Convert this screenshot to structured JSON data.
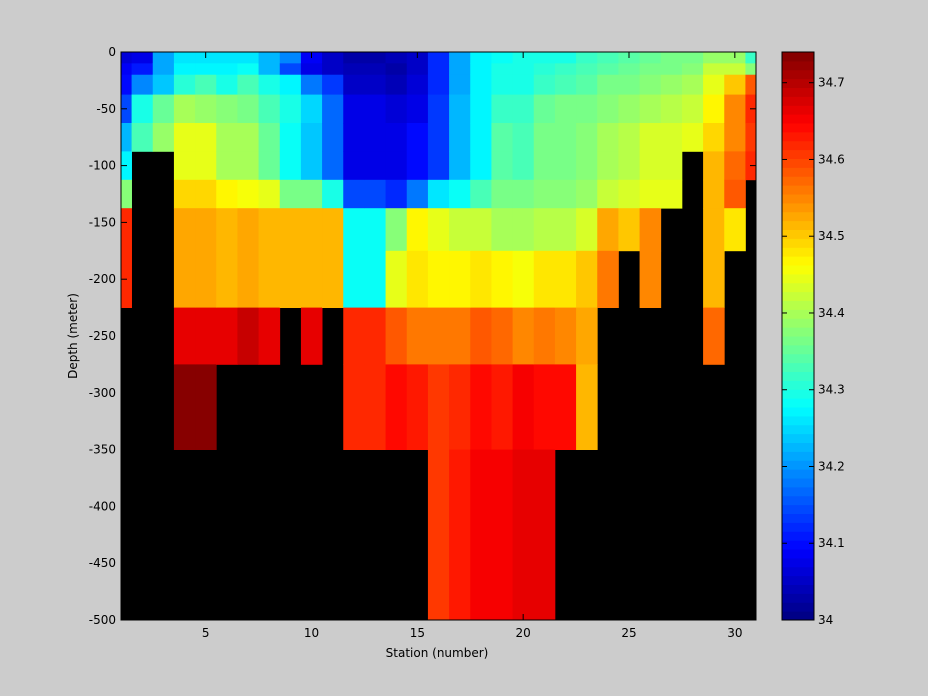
{
  "chart_data": {
    "type": "heatmap",
    "title": "",
    "xlabel": "Station (number)",
    "ylabel": "Depth (meter)",
    "xlim": [
      1,
      31
    ],
    "ylim": [
      -500,
      0
    ],
    "xticks": [
      5,
      10,
      15,
      20,
      25,
      30
    ],
    "yticks": [
      0,
      -50,
      -100,
      -150,
      -200,
      -250,
      -300,
      -350,
      -400,
      -450,
      -500
    ],
    "colorbar": {
      "clim": [
        34.0,
        34.74
      ],
      "colormap": "jet",
      "ticks": [
        34.0,
        34.1,
        34.2,
        34.3,
        34.4,
        34.5,
        34.6,
        34.7
      ],
      "tick_labels": [
        "34",
        "34.1",
        "34.2",
        "34.3",
        "34.4",
        "34.5",
        "34.6",
        "34.7"
      ]
    },
    "background_color": "#000000",
    "depth_rows": [
      -5,
      -15,
      -25,
      -50,
      -75,
      -100,
      -125,
      -150,
      -200,
      -250,
      -300,
      -400
    ],
    "stations": [
      {
        "station": 1,
        "values": [
          34.06,
          34.09,
          34.1,
          34.14,
          34.22,
          34.27,
          34.38,
          34.62,
          34.62
        ]
      },
      {
        "station": 2,
        "values": [
          34.08,
          34.11,
          34.19,
          34.29,
          34.33,
          null,
          null,
          null,
          null
        ]
      },
      {
        "station": 3,
        "values": [
          34.21,
          34.21,
          34.24,
          34.35,
          34.39,
          null,
          null,
          null,
          null
        ]
      },
      {
        "station": 4,
        "values": [
          34.26,
          34.27,
          34.31,
          34.4,
          34.44,
          34.45,
          34.49,
          34.53,
          34.53,
          34.67,
          34.74
        ]
      },
      {
        "station": 5,
        "values": [
          34.26,
          34.27,
          34.33,
          34.39,
          34.45,
          34.45,
          34.49,
          34.53,
          34.53,
          34.67,
          34.74
        ]
      },
      {
        "station": 6,
        "values": [
          34.26,
          34.27,
          34.3,
          34.38,
          34.4,
          34.4,
          34.47,
          34.52,
          34.52,
          34.67
        ]
      },
      {
        "station": 7,
        "values": [
          34.26,
          34.28,
          34.33,
          34.37,
          34.4,
          34.4,
          34.46,
          34.53,
          34.53,
          34.69
        ]
      },
      {
        "station": 8,
        "values": [
          34.23,
          34.23,
          34.3,
          34.33,
          34.35,
          34.35,
          34.44,
          34.52,
          34.52,
          34.67
        ]
      },
      {
        "station": 9,
        "values": [
          34.19,
          34.15,
          34.27,
          34.3,
          34.28,
          34.28,
          34.37,
          34.52,
          34.52
        ]
      },
      {
        "station": 10,
        "values": [
          34.09,
          34.07,
          34.18,
          34.25,
          34.24,
          34.24,
          34.36,
          34.51,
          34.51,
          34.66
        ]
      },
      {
        "station": 11,
        "values": [
          34.05,
          34.05,
          34.13,
          34.17,
          34.17,
          34.17,
          34.3,
          34.51,
          34.51
        ]
      },
      {
        "station": 12,
        "values": [
          34.03,
          34.04,
          34.05,
          34.07,
          34.07,
          34.07,
          34.15,
          34.28,
          34.28,
          34.62,
          34.62
        ]
      },
      {
        "station": 13,
        "values": [
          34.03,
          34.04,
          34.05,
          34.07,
          34.07,
          34.07,
          34.15,
          34.28,
          34.28,
          34.62,
          34.62
        ]
      },
      {
        "station": 14,
        "values": [
          34.04,
          34.03,
          34.04,
          34.06,
          34.07,
          34.07,
          34.12,
          34.38,
          34.44,
          34.58,
          34.64
        ]
      },
      {
        "station": 15,
        "values": [
          34.05,
          34.05,
          34.06,
          34.08,
          34.1,
          34.1,
          34.18,
          34.47,
          34.48,
          34.56,
          34.63
        ]
      },
      {
        "station": 16,
        "values": [
          34.12,
          34.12,
          34.12,
          34.13,
          34.13,
          34.13,
          34.26,
          34.45,
          34.47,
          34.56,
          34.61,
          34.61
        ]
      },
      {
        "station": 17,
        "values": [
          34.21,
          34.21,
          34.21,
          34.22,
          34.22,
          34.22,
          34.28,
          34.42,
          34.47,
          34.56,
          34.62,
          34.63
        ]
      },
      {
        "station": 18,
        "values": [
          34.27,
          34.27,
          34.27,
          34.27,
          34.27,
          34.27,
          34.33,
          34.42,
          34.48,
          34.58,
          34.64,
          34.65
        ]
      },
      {
        "station": 19,
        "values": [
          34.28,
          34.3,
          34.3,
          34.32,
          34.34,
          34.34,
          34.37,
          34.4,
          34.47,
          34.57,
          34.63,
          34.65
        ]
      },
      {
        "station": 20,
        "values": [
          34.29,
          34.3,
          34.3,
          34.32,
          34.33,
          34.33,
          34.36,
          34.4,
          34.46,
          34.55,
          34.65,
          34.66
        ]
      },
      {
        "station": 21,
        "values": [
          34.29,
          34.31,
          34.32,
          34.35,
          34.36,
          34.36,
          34.38,
          34.41,
          34.48,
          34.56,
          34.64,
          34.66
        ]
      },
      {
        "station": 22,
        "values": [
          34.3,
          34.32,
          34.33,
          34.36,
          34.37,
          34.37,
          34.38,
          34.41,
          34.48,
          34.55,
          34.64
        ]
      },
      {
        "station": 23,
        "values": [
          34.32,
          34.33,
          34.34,
          34.36,
          34.38,
          34.38,
          34.39,
          34.43,
          34.5,
          34.53,
          34.52
        ]
      },
      {
        "station": 24,
        "values": [
          34.33,
          34.34,
          34.36,
          34.38,
          34.4,
          34.4,
          34.42,
          34.53,
          34.56
        ]
      },
      {
        "station": 25,
        "values": [
          34.34,
          34.35,
          34.37,
          34.39,
          34.41,
          34.41,
          34.43,
          34.5
        ]
      },
      {
        "station": 26,
        "values": [
          34.35,
          34.36,
          34.38,
          34.4,
          34.43,
          34.43,
          34.44,
          34.55,
          34.55
        ]
      },
      {
        "station": 27,
        "values": [
          34.36,
          34.37,
          34.39,
          34.41,
          34.43,
          34.43,
          34.44
        ]
      },
      {
        "station": 28,
        "values": [
          34.37,
          34.38,
          34.4,
          34.42,
          34.45
        ]
      },
      {
        "station": 29,
        "values": [
          34.39,
          34.42,
          34.45,
          34.47,
          34.49,
          34.52,
          34.52,
          34.52,
          34.52,
          34.57
        ]
      },
      {
        "station": 30,
        "values": [
          34.39,
          34.42,
          34.5,
          34.55,
          34.55,
          34.57,
          34.58,
          34.48
        ]
      },
      {
        "station": 31,
        "values": [
          34.32,
          34.38,
          34.58,
          34.62,
          34.61,
          34.62
        ]
      }
    ]
  }
}
